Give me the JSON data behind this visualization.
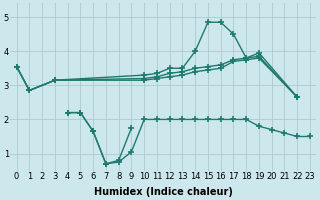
{
  "background_color": "#cde8ec",
  "grid_color": "#b0c8cc",
  "line_color": "#1e7a6e",
  "line_width": 1.0,
  "marker": "+",
  "marker_size": 4,
  "marker_edge_width": 1.2,
  "xlabel": "Humidex (Indice chaleur)",
  "xlabel_fontsize": 7,
  "tick_fontsize": 6,
  "xlim": [
    -0.5,
    23.5
  ],
  "ylim": [
    0.5,
    5.4
  ],
  "yticks": [
    1,
    2,
    3,
    4,
    5
  ],
  "xtick_labels": [
    "0",
    "1",
    "2",
    "3",
    "4",
    "5",
    "6",
    "7",
    "8",
    "9",
    "10",
    "11",
    "12",
    "13",
    "14",
    "15",
    "16",
    "17",
    "18",
    "19",
    "20",
    "21",
    "22",
    "23"
  ],
  "series": [
    {
      "x": [
        0,
        1,
        3,
        10,
        11,
        12,
        13,
        14,
        15,
        16,
        17,
        18,
        19,
        22
      ],
      "y": [
        3.55,
        2.85,
        3.15,
        3.3,
        3.35,
        3.5,
        3.5,
        4.0,
        4.85,
        4.85,
        4.5,
        3.8,
        3.95,
        2.65
      ]
    },
    {
      "x": [
        0,
        1,
        3,
        10,
        11,
        12,
        13,
        14,
        15,
        16,
        17,
        18,
        19,
        22
      ],
      "y": [
        3.55,
        2.85,
        3.15,
        3.2,
        3.25,
        3.35,
        3.4,
        3.5,
        3.55,
        3.6,
        3.75,
        3.8,
        3.85,
        2.65
      ]
    },
    {
      "x": [
        0,
        1,
        3,
        10,
        11,
        12,
        13,
        14,
        15,
        16,
        17,
        18,
        19,
        22
      ],
      "y": [
        3.55,
        2.85,
        3.15,
        3.15,
        3.2,
        3.25,
        3.3,
        3.4,
        3.45,
        3.5,
        3.7,
        3.75,
        3.8,
        2.65
      ]
    },
    {
      "x": [
        4,
        5,
        6,
        7,
        8,
        9,
        10,
        11,
        12,
        13,
        14,
        15,
        16,
        17,
        18,
        19,
        20,
        21,
        22,
        23
      ],
      "y": [
        2.2,
        2.2,
        1.65,
        0.7,
        0.75,
        1.05,
        2.0,
        2.0,
        2.0,
        2.0,
        2.0,
        2.0,
        2.0,
        2.0,
        2.0,
        1.8,
        1.7,
        1.6,
        1.5,
        1.5
      ]
    },
    {
      "x": [
        4,
        5,
        6,
        7,
        8,
        9
      ],
      "y": [
        2.2,
        2.2,
        1.65,
        0.7,
        0.8,
        1.75
      ]
    }
  ]
}
